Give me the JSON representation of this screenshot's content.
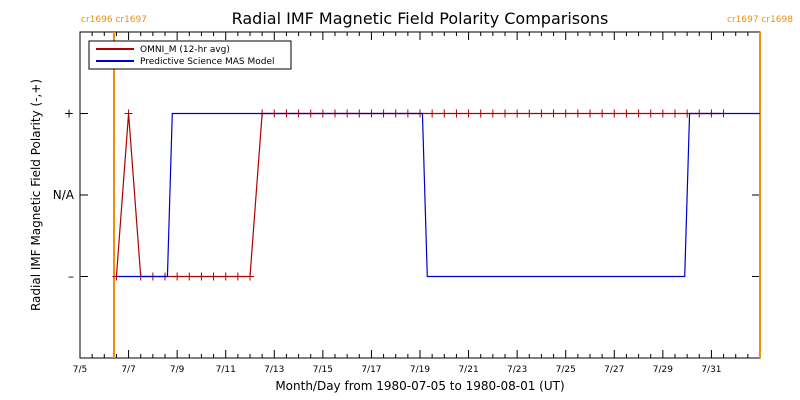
{
  "chart_data": {
    "type": "line",
    "title": "Radial IMF Magnetic Field Polarity Comparisons",
    "xlabel": "Month/Day from 1980-07-05 to 1980-08-01 (UT)",
    "ylabel": "Radial IMF Magnetic Field Polarity (-,+)",
    "x_unit": "days since 1980-07-05",
    "xlim": [
      0,
      28
    ],
    "x_tick_values": [
      0,
      2,
      4,
      6,
      8,
      10,
      12,
      14,
      16,
      18,
      20,
      22,
      24,
      26
    ],
    "x_tick_labels": [
      "7/5",
      "7/7",
      "7/9",
      "7/11",
      "7/13",
      "7/15",
      "7/17",
      "7/19",
      "7/21",
      "7/23",
      "7/25",
      "7/27",
      "7/29",
      "7/31"
    ],
    "ylim": [
      -2,
      2
    ],
    "y_tick_values": [
      -1,
      0,
      1
    ],
    "y_tick_labels": [
      "–",
      "N/A",
      "+"
    ],
    "legend": {
      "position": "top-left",
      "entries": [
        "OMNI_M (12-hr avg)",
        "Predictive Science MAS Model"
      ]
    },
    "series": [
      {
        "name": "OMNI_M (12-hr avg)",
        "color": "#b00000",
        "marker": "plus",
        "x": [
          1.5,
          2.0,
          2.5,
          3.0,
          3.5,
          4.0,
          4.5,
          5.0,
          5.5,
          6.0,
          6.5,
          7.0,
          7.5,
          8.0,
          8.5,
          9.0,
          9.5,
          10.0,
          10.5,
          11.0,
          11.5,
          12.0,
          12.5,
          13.0,
          13.5,
          14.0,
          14.5,
          15.0,
          15.5,
          16.0,
          16.5,
          17.0,
          17.5,
          18.0,
          18.5,
          19.0,
          19.5,
          20.0,
          20.5,
          21.0,
          21.5,
          22.0,
          22.5,
          23.0,
          23.5,
          24.0,
          24.5,
          25.0,
          25.5,
          26.0,
          26.5
        ],
        "y": [
          -1,
          1,
          -1,
          -1,
          -1,
          -1,
          -1,
          -1,
          -1,
          -1,
          -1,
          -1,
          1,
          1,
          1,
          1,
          1,
          1,
          1,
          1,
          1,
          1,
          1,
          1,
          1,
          1,
          1,
          1,
          1,
          1,
          1,
          1,
          1,
          1,
          1,
          1,
          1,
          1,
          1,
          1,
          1,
          1,
          1,
          1,
          1,
          1,
          1,
          1,
          1,
          1,
          1
        ]
      },
      {
        "name": "Predictive Science MAS Model",
        "color": "#0000cc",
        "x": [
          1.5,
          3.6,
          3.8,
          14.1,
          14.3,
          24.9,
          25.1,
          28.0
        ],
        "y": [
          -1,
          -1,
          1,
          1,
          -1,
          -1,
          1,
          1
        ]
      }
    ],
    "carrington_markers": [
      {
        "x": 1.4,
        "top_label": "cr1696 cr1697"
      },
      {
        "x": 28.6,
        "top_label": "cr1697 cr1698"
      }
    ],
    "carrington_color": "#f0900a"
  }
}
